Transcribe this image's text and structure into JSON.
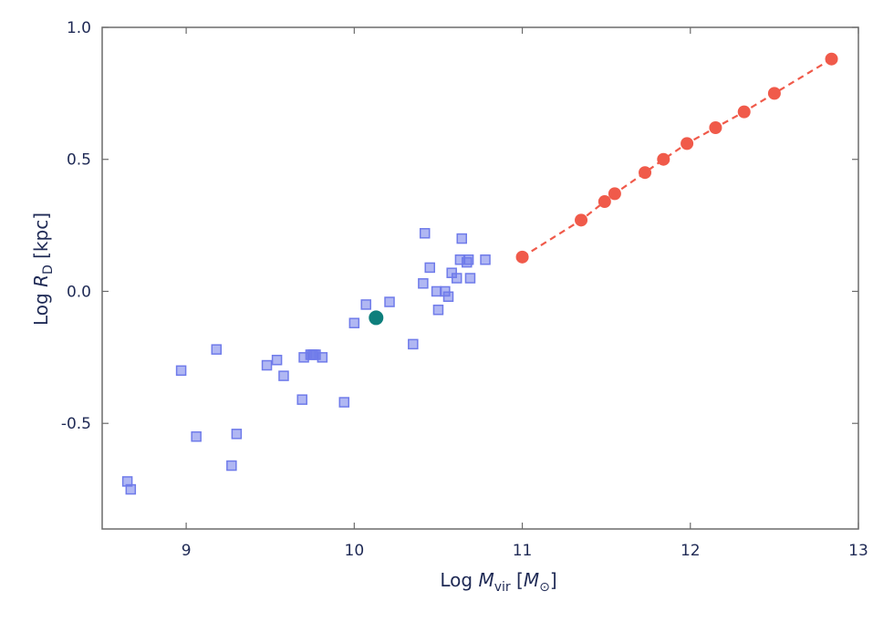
{
  "chart_data": {
    "type": "scatter",
    "title": "",
    "xlabel": {
      "prefix": "Log ",
      "var": "M",
      "sub": "vir",
      "open": " [",
      "unit": "M",
      "unit_sub": "⊙",
      "close": "]"
    },
    "ylabel": {
      "prefix": "Log ",
      "var": "R",
      "sub": "D",
      "suffix": " [kpc]"
    },
    "xlim": [
      8.5,
      13.0
    ],
    "ylim": [
      -0.9,
      1.0
    ],
    "x_ticks": [
      9,
      10,
      11,
      12,
      13
    ],
    "x_tick_labels": [
      "9",
      "10",
      "11",
      "12",
      "13"
    ],
    "y_ticks": [
      -0.5,
      0.0,
      0.5,
      1.0
    ],
    "y_tick_labels": [
      "-0.5",
      "0.0",
      "0.5",
      "1.0"
    ],
    "grid": false,
    "series": [
      {
        "marker": "square",
        "color": "#6f7bea",
        "line": false,
        "x": [
          8.65,
          8.67,
          8.97,
          9.06,
          9.18,
          9.27,
          9.3,
          9.48,
          9.54,
          9.58,
          9.69,
          9.7,
          9.74,
          9.75,
          9.76,
          9.77,
          9.81,
          9.94,
          10.0,
          10.07,
          10.21,
          10.35,
          10.41,
          10.42,
          10.45,
          10.49,
          10.5,
          10.54,
          10.56,
          10.58,
          10.61,
          10.63,
          10.64,
          10.67,
          10.68,
          10.69,
          10.78
        ],
        "y": [
          -0.72,
          -0.75,
          -0.3,
          -0.55,
          -0.22,
          -0.66,
          -0.54,
          -0.28,
          -0.26,
          -0.32,
          -0.41,
          -0.25,
          -0.24,
          -0.24,
          -0.24,
          -0.24,
          -0.25,
          -0.42,
          -0.12,
          -0.05,
          -0.04,
          -0.2,
          0.03,
          0.22,
          0.09,
          0.0,
          -0.07,
          0.0,
          -0.02,
          0.07,
          0.05,
          0.12,
          0.2,
          0.11,
          0.12,
          0.05,
          0.12
        ]
      },
      {
        "marker": "circle",
        "color": "#f05a4a",
        "line": "dashed",
        "x": [
          11.0,
          11.35,
          11.49,
          11.55,
          11.73,
          11.84,
          11.98,
          12.15,
          12.32,
          12.5,
          12.84
        ],
        "y": [
          0.13,
          0.27,
          0.34,
          0.37,
          0.45,
          0.5,
          0.56,
          0.62,
          0.68,
          0.75,
          0.88
        ]
      },
      {
        "marker": "circle",
        "color": "#0e7f7c",
        "line": false,
        "x": [
          10.13
        ],
        "y": [
          -0.1
        ]
      }
    ]
  }
}
